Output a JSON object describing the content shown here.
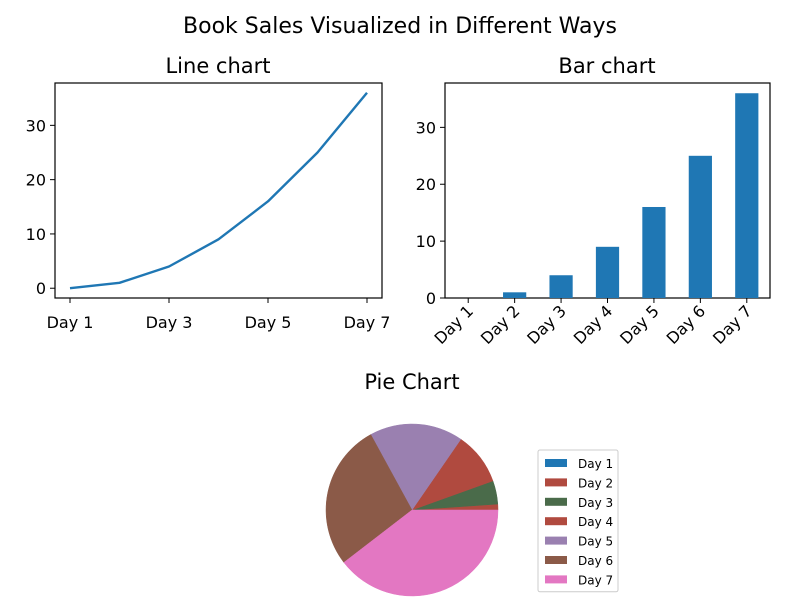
{
  "figure": {
    "suptitle": "Book Sales Visualized in Different Ways"
  },
  "colors": {
    "line": "#1f77b4",
    "bar": "#1f77b4",
    "pie": [
      "#1f77b4",
      "#b04a3f",
      "#4a6b4a",
      "#b04a3f",
      "#9a80b0",
      "#8b5a48",
      "#e377c2"
    ]
  },
  "chart_data": [
    {
      "type": "line",
      "title": "Line chart",
      "x": [
        "Day 1",
        "Day 2",
        "Day 3",
        "Day 4",
        "Day 5",
        "Day 6",
        "Day 7"
      ],
      "y": [
        0,
        1,
        4,
        9,
        16,
        25,
        36
      ],
      "xticks": [
        "Day 1",
        "Day 3",
        "Day 5",
        "Day 7"
      ],
      "yticks": [
        0,
        10,
        20,
        30
      ],
      "ylim": [
        -1.8,
        37.8
      ],
      "xlabel": "",
      "ylabel": "",
      "grid": false
    },
    {
      "type": "bar",
      "title": "Bar chart",
      "categories": [
        "Day 1",
        "Day 2",
        "Day 3",
        "Day 4",
        "Day 5",
        "Day 6",
        "Day 7"
      ],
      "values": [
        0,
        1,
        4,
        9,
        16,
        25,
        36
      ],
      "yticks": [
        0,
        10,
        20,
        30
      ],
      "ylim": [
        0,
        37.8
      ],
      "xlabel": "",
      "ylabel": "",
      "grid": false
    },
    {
      "type": "pie",
      "title": "Pie Chart",
      "labels": [
        "Day 1",
        "Day 2",
        "Day 3",
        "Day 4",
        "Day 5",
        "Day 6",
        "Day 7"
      ],
      "values": [
        0,
        1,
        4,
        9,
        16,
        25,
        36
      ],
      "legend": "right"
    }
  ]
}
